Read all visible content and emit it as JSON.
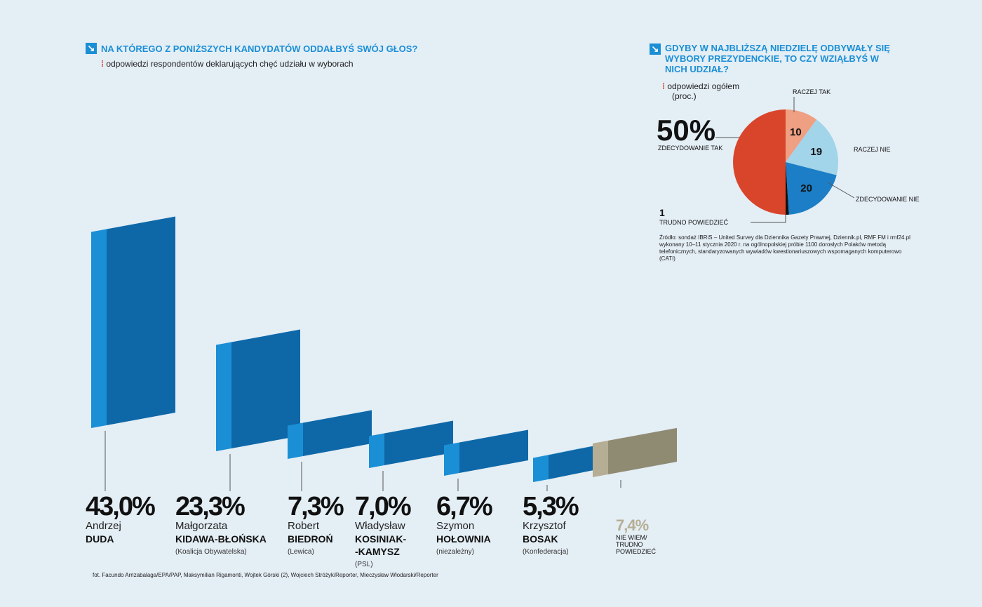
{
  "left": {
    "title": "NA KTÓREGO Z PONIŻSZYCH KANDYDATÓW ODDAŁBYŚ SWÓJ GŁOS?",
    "subtitle": "odpowiedzi respondentów deklarujących chęć udziału w wyborach"
  },
  "right": {
    "title": "GDYBY W NAJBLIŻSZĄ NIEDZIELĘ ODBYWAŁY SIĘ WYBORY PREZYDENCKIE, TO CZY WZIĄŁBYŚ W NICH UDZIAŁ?",
    "subtitle": "odpowiedzi ogółem",
    "unit": "(proc.)",
    "source": "Źródło: sondaż IBRiS – United Survey dla Dziennika Gazety Prawnej, Dziennik.pl, RMF FM i rmf24.pl wykonany 10–11 stycznia 2020 r. na ogólnopolskiej próbie 1100 dorosłych Polaków metodą telefonicznych, standaryzowanych wywiadów kwestionariuszowych wspomaganych komputerowo (CATI)"
  },
  "photo_credit": "fot. Facundo Arrizabalaga/EPA/PAP, Maksymilian Rigamonti, Wojtek Górski (2), Wojciech Stróżyk/Reporter, Mieczysław Włodarski/Reporter",
  "chart_data": [
    {
      "type": "bar",
      "categories": [
        "Andrzej DUDA",
        "Małgorzata KIDAWA-BŁOŃSKA",
        "Robert BIEDROŃ",
        "Władysław KOSINIAK-KAMYSZ",
        "Szymon HOŁOWNIA",
        "Krzysztof BOSAK",
        "NIE WIEM/ TRUDNO POWIEDZIEĆ"
      ],
      "values": [
        43.0,
        23.3,
        7.3,
        7.0,
        6.7,
        5.3,
        7.4
      ],
      "labels": [
        "43,0%",
        "23,3%",
        "7,3%",
        "7,0%",
        "6,7%",
        "5,3%",
        "7,4%"
      ],
      "candidates": [
        {
          "first": "Andrzej",
          "last": "DUDA",
          "party": ""
        },
        {
          "first": "Małgorzata",
          "last": "KIDAWA-BŁOŃSKA",
          "party": "(Koalicja Obywatelska)"
        },
        {
          "first": "Robert",
          "last": "BIEDROŃ",
          "party": "(Lewica)"
        },
        {
          "first": "Władysław",
          "last": "KOSINIAK-\n-KAMYSZ",
          "party": "(PSL)"
        },
        {
          "first": "Szymon",
          "last": "HOŁOWNIA",
          "party": "(niezależny)"
        },
        {
          "first": "Krzysztof",
          "last": "BOSAK",
          "party": "(Konfederacja)"
        }
      ],
      "undecided": "NIE WIEM/ TRUDNO POWIEDZIEĆ",
      "colors": {
        "bar": "#1a8fd6",
        "undecided": "#b5ae94"
      }
    },
    {
      "type": "pie",
      "slices": [
        {
          "label": "RACZEJ TAK",
          "value": 10,
          "color": "#ef9f82"
        },
        {
          "label": "RACZEJ NIE",
          "value": 19,
          "color": "#a2d4ea"
        },
        {
          "label": "ZDECYDOWANIE NIE",
          "value": 20,
          "color": "#1b7ec6"
        },
        {
          "label": "TRUDNO POWIEDZIEĆ",
          "value": 1,
          "color": "#111111"
        },
        {
          "label": "ZDECYDOWANIE TAK",
          "value": 50,
          "color": "#d9452b"
        }
      ],
      "big_label": "50%"
    }
  ]
}
